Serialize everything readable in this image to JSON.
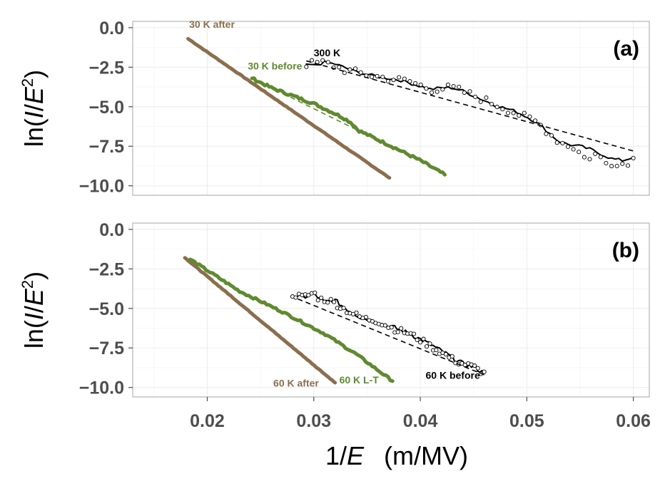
{
  "chart_data": [
    {
      "type": "line",
      "panel_label": "(a)",
      "ylabel_prefix": "ln(",
      "ylabel_italic_i": "I",
      "ylabel_slash": "/",
      "ylabel_italic_e": "E",
      "ylabel_sup": "2",
      "ylabel_suffix": ")",
      "ylim": [
        -10.6,
        0.4
      ],
      "xlim": [
        0.013,
        0.0615
      ],
      "y_ticks": [
        0.0,
        -2.5,
        -5.0,
        -7.5,
        -10.0
      ],
      "y_tick_labels": [
        "0.0",
        "−2.5",
        "−5.0",
        "−7.5",
        "−10.0"
      ],
      "x_ticks": [],
      "grid": true,
      "series": [
        {
          "name": "30 K after",
          "color": "#8b6e4e",
          "style": "thick-line",
          "x": [
            0.0182,
            0.0371
          ],
          "y": [
            -0.7,
            -9.5
          ],
          "noise": 0.02
        },
        {
          "name": "30 K before",
          "color": "#5f8a2f",
          "style": "thick-line",
          "x": [
            0.0242,
            0.026,
            0.03,
            0.0325,
            0.0335,
            0.0342,
            0.037,
            0.04,
            0.0423
          ],
          "y": [
            -3.2,
            -3.8,
            -4.8,
            -5.6,
            -6.0,
            -6.5,
            -7.4,
            -8.4,
            -9.3
          ],
          "noise": 0.08
        },
        {
          "name": "30 K before fit",
          "color": "#5f8a2f",
          "style": "dashed",
          "x": [
            0.0242,
            0.0423
          ],
          "y": [
            -3.2,
            -9.2
          ]
        },
        {
          "name": "300 K",
          "color": "#000000",
          "style": "line",
          "x": [
            0.0293,
            0.03,
            0.031,
            0.032,
            0.034,
            0.036,
            0.038,
            0.04,
            0.041,
            0.042,
            0.043,
            0.044,
            0.045,
            0.047,
            0.049,
            0.051,
            0.052,
            0.053,
            0.054,
            0.055,
            0.056,
            0.057,
            0.058,
            0.059,
            0.06
          ],
          "y": [
            -2.3,
            -2.4,
            -2.2,
            -2.3,
            -2.8,
            -3.1,
            -3.3,
            -3.7,
            -3.9,
            -3.8,
            -3.8,
            -4.0,
            -4.3,
            -4.9,
            -5.3,
            -6.0,
            -6.6,
            -7.2,
            -7.4,
            -7.5,
            -7.7,
            -8.0,
            -8.3,
            -8.4,
            -8.2
          ],
          "noise": 0.1
        },
        {
          "name": "300 K points",
          "color": "#000000",
          "style": "markers",
          "x": [
            0.0293,
            0.031,
            0.033,
            0.036,
            0.039,
            0.041,
            0.043,
            0.045,
            0.048,
            0.051,
            0.053,
            0.0545,
            0.0555,
            0.0565,
            0.0575,
            0.0585,
            0.0595,
            0.06
          ],
          "y": [
            -2.3,
            -2.2,
            -2.7,
            -3.1,
            -3.4,
            -3.9,
            -3.8,
            -4.3,
            -5.1,
            -6.0,
            -7.2,
            -7.6,
            -8.3,
            -8.0,
            -8.6,
            -8.5,
            -8.7,
            -8.0
          ],
          "noise": 0.25
        },
        {
          "name": "300 K fit",
          "color": "#000000",
          "style": "dashed",
          "x": [
            0.0293,
            0.06
          ],
          "y": [
            -2.1,
            -7.8
          ]
        }
      ],
      "labels": [
        {
          "text": "30 K after",
          "x": 0.0183,
          "y": 0.0,
          "color": "#8b6e4e"
        },
        {
          "text": "30 K before",
          "x": 0.0238,
          "y": -2.65,
          "color": "#5f8a2f"
        },
        {
          "text": "300 K",
          "x": 0.03,
          "y": -1.8,
          "color": "#000000"
        }
      ]
    },
    {
      "type": "line",
      "panel_label": "(b)",
      "ylabel_prefix": "ln(",
      "ylabel_italic_i": "I",
      "ylabel_slash": "/",
      "ylabel_italic_e": "E",
      "ylabel_sup": "2",
      "ylabel_suffix": ")",
      "xlabel_prefix": "1/",
      "xlabel_italic": "E",
      "xlabel_units": "(m/MV)",
      "ylim": [
        -10.6,
        0.4
      ],
      "xlim": [
        0.013,
        0.0615
      ],
      "y_ticks": [
        0.0,
        -2.5,
        -5.0,
        -7.5,
        -10.0
      ],
      "y_tick_labels": [
        "0.0",
        "−2.5",
        "−5.0",
        "−7.5",
        "−10.0"
      ],
      "x_ticks": [
        0.02,
        0.03,
        0.04,
        0.05,
        0.06
      ],
      "x_tick_labels": [
        "0.02",
        "0.03",
        "0.04",
        "0.05",
        "0.06"
      ],
      "grid": true,
      "series": [
        {
          "name": "60 K after",
          "color": "#8b6e4e",
          "style": "thick-line",
          "x": [
            0.0179,
            0.032
          ],
          "y": [
            -1.8,
            -9.7
          ],
          "noise": 0.02
        },
        {
          "name": "60 K L-T",
          "color": "#5f8a2f",
          "style": "thick-line",
          "x": [
            0.0184,
            0.023,
            0.027,
            0.031,
            0.034,
            0.0374
          ],
          "y": [
            -1.9,
            -3.9,
            -5.2,
            -6.6,
            -7.9,
            -9.6
          ],
          "noise": 0.07
        },
        {
          "name": "60 K before",
          "color": "#000000",
          "style": "line",
          "x": [
            0.028,
            0.029,
            0.03,
            0.031,
            0.032,
            0.033,
            0.0345,
            0.036,
            0.0375,
            0.039,
            0.041,
            0.043,
            0.044,
            0.045,
            0.046
          ],
          "y": [
            -4.2,
            -4.3,
            -4.1,
            -4.6,
            -4.5,
            -5.0,
            -5.6,
            -5.9,
            -6.2,
            -6.6,
            -7.3,
            -8.1,
            -8.5,
            -8.7,
            -9.1
          ],
          "noise": 0.15
        },
        {
          "name": "60 K before points",
          "color": "#000000",
          "style": "markers",
          "x": [
            0.028,
            0.029,
            0.03,
            0.0305,
            0.0315,
            0.033,
            0.0345,
            0.036,
            0.0375,
            0.039,
            0.0405,
            0.042,
            0.0435,
            0.045,
            0.046
          ],
          "y": [
            -4.1,
            -4.3,
            -4.0,
            -4.4,
            -4.5,
            -5.1,
            -5.6,
            -5.8,
            -6.3,
            -6.6,
            -7.2,
            -7.8,
            -8.4,
            -8.7,
            -9.1
          ],
          "noise": 0.2
        },
        {
          "name": "60 K before fit",
          "color": "#000000",
          "style": "dashed",
          "x": [
            0.0285,
            0.046
          ],
          "y": [
            -4.4,
            -9.2
          ]
        }
      ],
      "labels": [
        {
          "text": "60 K after",
          "x": 0.0262,
          "y": -9.95,
          "color": "#8b6e4e"
        },
        {
          "text": "60 K L-T",
          "x": 0.0324,
          "y": -9.75,
          "color": "#5f8a2f"
        },
        {
          "text": "60 K before",
          "x": 0.0405,
          "y": -9.45,
          "color": "#000000"
        }
      ]
    }
  ]
}
